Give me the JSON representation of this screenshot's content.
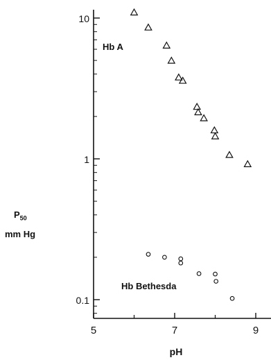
{
  "chart_data": {
    "type": "scatter",
    "title": "",
    "xlabel": "pH",
    "ylabel_main": "P",
    "ylabel_sub": "50",
    "ylabel_unit": "mm Hg",
    "xlim": [
      5,
      9.4
    ],
    "ylim": [
      0.08,
      12
    ],
    "yscale": "log",
    "x_ticks": [
      5,
      7,
      9
    ],
    "x_minor_ticks": [
      6,
      8
    ],
    "y_ticks": [
      10,
      1,
      0.1
    ],
    "y_tick_labels": [
      "10",
      "1",
      "0.1"
    ],
    "x_tick_labels": [
      "5",
      "7",
      "9"
    ],
    "grid": false,
    "series": [
      {
        "name": "Hb A",
        "marker": "triangle",
        "points": [
          {
            "x": 6.0,
            "y": 11.0
          },
          {
            "x": 6.35,
            "y": 8.6
          },
          {
            "x": 6.8,
            "y": 6.4
          },
          {
            "x": 6.92,
            "y": 5.0
          },
          {
            "x": 7.1,
            "y": 3.8
          },
          {
            "x": 7.2,
            "y": 3.6
          },
          {
            "x": 7.55,
            "y": 2.35
          },
          {
            "x": 7.58,
            "y": 2.15
          },
          {
            "x": 7.72,
            "y": 1.95
          },
          {
            "x": 7.98,
            "y": 1.6
          },
          {
            "x": 8.0,
            "y": 1.45
          },
          {
            "x": 8.35,
            "y": 1.07
          },
          {
            "x": 8.8,
            "y": 0.92
          }
        ]
      },
      {
        "name": "Hb Bethesda",
        "marker": "circle",
        "points": [
          {
            "x": 6.35,
            "y": 0.21
          },
          {
            "x": 6.75,
            "y": 0.2
          },
          {
            "x": 7.15,
            "y": 0.195
          },
          {
            "x": 7.15,
            "y": 0.182
          },
          {
            "x": 7.6,
            "y": 0.153
          },
          {
            "x": 8.0,
            "y": 0.152
          },
          {
            "x": 8.02,
            "y": 0.135
          },
          {
            "x": 8.42,
            "y": 0.102
          }
        ]
      }
    ]
  }
}
